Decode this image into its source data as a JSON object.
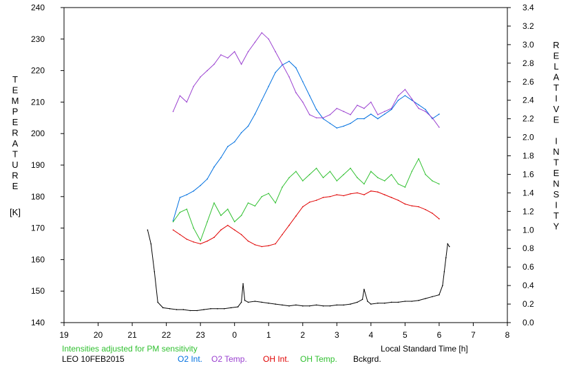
{
  "chart_data": {
    "type": "line",
    "left_axis": {
      "ylabel": "TEMPERATURE",
      "unit": "[K]",
      "ylim": [
        140,
        240
      ],
      "ticks": [
        "140",
        "150",
        "160",
        "170",
        "180",
        "190",
        "200",
        "210",
        "220",
        "230",
        "240"
      ]
    },
    "right_axis": {
      "ylabel": "RELATIVE INTENSITY",
      "ylim": [
        0.0,
        3.4
      ],
      "ticks": [
        "0.0",
        "0.2",
        "0.4",
        "0.6",
        "0.8",
        "1.0",
        "1.2",
        "1.4",
        "1.6",
        "1.8",
        "2.0",
        "2.2",
        "2.4",
        "2.6",
        "2.8",
        "3.0",
        "3.2",
        "3.4"
      ]
    },
    "x_axis": {
      "xlabel": "Local Standard Time [h]",
      "xlim": [
        19,
        32
      ],
      "ticks": [
        "19",
        "20",
        "21",
        "22",
        "23",
        "0",
        "1",
        "2",
        "3",
        "4",
        "5",
        "6",
        "7",
        "8"
      ]
    },
    "note": "Intensities adjusted for PM sensitivity",
    "station": "LEO 10FEB2015",
    "grid": false,
    "legend_position": "bottom",
    "colors": {
      "o2_int": "#0070e0",
      "o2_temp": "#9a40d0",
      "oh_int": "#e00000",
      "oh_temp": "#30c030",
      "bckgrd": "#000000"
    },
    "series": [
      {
        "name": "O2 Int.",
        "axis": "right",
        "x": [
          22.2,
          22.4,
          22.6,
          22.8,
          23.0,
          23.2,
          23.4,
          23.6,
          23.8,
          24.0,
          24.2,
          24.4,
          24.6,
          24.8,
          25.0,
          25.2,
          25.4,
          25.6,
          25.8,
          26.0,
          26.2,
          26.4,
          26.6,
          26.8,
          27.0,
          27.2,
          27.4,
          27.6,
          27.8,
          28.0,
          28.2,
          28.4,
          28.6,
          28.8,
          29.0,
          29.2,
          29.4,
          29.6,
          29.8,
          30.0
        ],
        "values": [
          1.1,
          1.35,
          1.38,
          1.42,
          1.48,
          1.55,
          1.68,
          1.78,
          1.9,
          1.95,
          2.05,
          2.12,
          2.25,
          2.4,
          2.55,
          2.7,
          2.78,
          2.82,
          2.75,
          2.6,
          2.45,
          2.3,
          2.2,
          2.15,
          2.1,
          2.12,
          2.15,
          2.2,
          2.2,
          2.25,
          2.2,
          2.25,
          2.3,
          2.4,
          2.45,
          2.4,
          2.35,
          2.3,
          2.2,
          2.25
        ]
      },
      {
        "name": "O2 Temp.",
        "axis": "left",
        "x": [
          22.2,
          22.4,
          22.6,
          22.8,
          23.0,
          23.2,
          23.4,
          23.6,
          23.8,
          24.0,
          24.2,
          24.4,
          24.6,
          24.8,
          25.0,
          25.2,
          25.4,
          25.6,
          25.8,
          26.0,
          26.2,
          26.4,
          26.6,
          26.8,
          27.0,
          27.2,
          27.4,
          27.6,
          27.8,
          28.0,
          28.2,
          28.4,
          28.6,
          28.8,
          29.0,
          29.2,
          29.4,
          29.6,
          29.8,
          30.0
        ],
        "values": [
          207,
          212,
          210,
          215,
          218,
          220,
          222,
          225,
          224,
          226,
          222,
          226,
          229,
          232,
          230,
          226,
          222,
          218,
          213,
          210,
          206,
          205,
          205,
          206,
          208,
          207,
          206,
          209,
          208,
          210,
          206,
          207,
          208,
          212,
          214,
          211,
          208,
          207,
          205,
          202
        ]
      },
      {
        "name": "OH Int.",
        "axis": "right",
        "x": [
          22.2,
          22.4,
          22.6,
          22.8,
          23.0,
          23.2,
          23.4,
          23.6,
          23.8,
          24.0,
          24.2,
          24.4,
          24.6,
          24.8,
          25.0,
          25.2,
          25.4,
          25.6,
          25.8,
          26.0,
          26.2,
          26.4,
          26.6,
          26.8,
          27.0,
          27.2,
          27.4,
          27.6,
          27.8,
          28.0,
          28.2,
          28.4,
          28.6,
          28.8,
          29.0,
          29.2,
          29.4,
          29.6,
          29.8,
          30.0
        ],
        "values": [
          1.0,
          0.95,
          0.9,
          0.87,
          0.85,
          0.88,
          0.92,
          1.0,
          1.05,
          1.0,
          0.95,
          0.88,
          0.84,
          0.82,
          0.83,
          0.85,
          0.95,
          1.05,
          1.15,
          1.25,
          1.3,
          1.32,
          1.35,
          1.36,
          1.38,
          1.37,
          1.39,
          1.4,
          1.38,
          1.42,
          1.41,
          1.38,
          1.35,
          1.32,
          1.28,
          1.26,
          1.25,
          1.22,
          1.18,
          1.12
        ]
      },
      {
        "name": "OH Temp.",
        "axis": "left",
        "x": [
          22.2,
          22.4,
          22.6,
          22.8,
          23.0,
          23.2,
          23.4,
          23.6,
          23.8,
          24.0,
          24.2,
          24.4,
          24.6,
          24.8,
          25.0,
          25.2,
          25.4,
          25.6,
          25.8,
          26.0,
          26.2,
          26.4,
          26.6,
          26.8,
          27.0,
          27.2,
          27.4,
          27.6,
          27.8,
          28.0,
          28.2,
          28.4,
          28.6,
          28.8,
          29.0,
          29.2,
          29.4,
          29.6,
          29.8,
          30.0
        ],
        "values": [
          172,
          175,
          176,
          170,
          166,
          172,
          178,
          174,
          176,
          172,
          174,
          178,
          177,
          180,
          181,
          178,
          183,
          186,
          188,
          185,
          187,
          189,
          186,
          188,
          185,
          187,
          189,
          186,
          184,
          188,
          186,
          185,
          187,
          184,
          183,
          188,
          192,
          187,
          185,
          184
        ]
      },
      {
        "name": "Bckgrd.",
        "axis": "right",
        "x": [
          21.45,
          21.55,
          21.65,
          21.75,
          21.9,
          22.1,
          22.3,
          22.5,
          22.7,
          22.9,
          23.1,
          23.3,
          23.5,
          23.7,
          23.9,
          24.1,
          24.2,
          24.25,
          24.3,
          24.4,
          24.6,
          24.8,
          25.0,
          25.2,
          25.4,
          25.6,
          25.8,
          26.0,
          26.2,
          26.4,
          26.6,
          26.8,
          27.0,
          27.2,
          27.4,
          27.6,
          27.75,
          27.8,
          27.9,
          28.0,
          28.2,
          28.4,
          28.6,
          28.8,
          29.0,
          29.2,
          29.4,
          29.6,
          29.8,
          30.0,
          30.1,
          30.15,
          30.2,
          30.25,
          30.3
        ],
        "values": [
          1.0,
          0.85,
          0.55,
          0.22,
          0.16,
          0.15,
          0.14,
          0.14,
          0.13,
          0.13,
          0.14,
          0.15,
          0.15,
          0.15,
          0.16,
          0.17,
          0.22,
          0.42,
          0.24,
          0.22,
          0.23,
          0.22,
          0.21,
          0.2,
          0.19,
          0.18,
          0.19,
          0.18,
          0.18,
          0.19,
          0.18,
          0.18,
          0.19,
          0.19,
          0.2,
          0.22,
          0.25,
          0.36,
          0.23,
          0.2,
          0.21,
          0.21,
          0.22,
          0.22,
          0.23,
          0.23,
          0.24,
          0.26,
          0.28,
          0.3,
          0.4,
          0.55,
          0.7,
          0.85,
          0.82
        ]
      }
    ]
  }
}
